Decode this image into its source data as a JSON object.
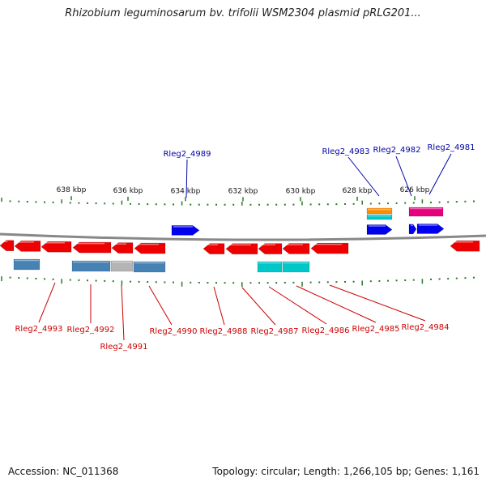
{
  "title": "Rhizobium leguminosarum bv. trifolii WSM2304 plasmid pRLG201...",
  "footer": {
    "accession_label": "Accession:",
    "accession": "NC_011368",
    "topology_label": "Topology:",
    "topology": "circular",
    "length_label": "Length:",
    "length": "1,266,105 bp",
    "genes_label": "Genes:",
    "genes": "1,161"
  },
  "scale": {
    "unit": "kbp",
    "ticks": [
      {
        "label": "638 kbp",
        "kbp": 638
      },
      {
        "label": "636 kbp",
        "kbp": 636
      },
      {
        "label": "634 kbp",
        "kbp": 634
      },
      {
        "label": "632 kbp",
        "kbp": 632
      },
      {
        "label": "630 kbp",
        "kbp": 630
      },
      {
        "label": "628 kbp",
        "kbp": 628
      },
      {
        "label": "626 kbp",
        "kbp": 626
      }
    ]
  },
  "colors": {
    "forward_gene": "#0000ee",
    "reverse_gene": "#ee0000",
    "steelblue_track": "#4682b4",
    "cyan_track": "#00c8c8",
    "gray_track": "#b4b4b4",
    "orange_track": "#ff8c00",
    "magenta_track": "#e6007e",
    "backbone": "#888888",
    "tick": "#2a7a2a",
    "forward_label": "#0000aa",
    "reverse_label": "#cc0000"
  },
  "genes": {
    "forward": [
      {
        "name": "Rleg2_4989"
      },
      {
        "name": "Rleg2_4983"
      },
      {
        "name": "Rleg2_4982"
      },
      {
        "name": "Rleg2_4981"
      }
    ],
    "reverse": [
      {
        "name": "Rleg2_4993"
      },
      {
        "name": "Rleg2_4992"
      },
      {
        "name": "Rleg2_4991"
      },
      {
        "name": "Rleg2_4990"
      },
      {
        "name": "Rleg2_4988"
      },
      {
        "name": "Rleg2_4987"
      },
      {
        "name": "Rleg2_4986"
      },
      {
        "name": "Rleg2_4985"
      },
      {
        "name": "Rleg2_4984"
      }
    ]
  }
}
